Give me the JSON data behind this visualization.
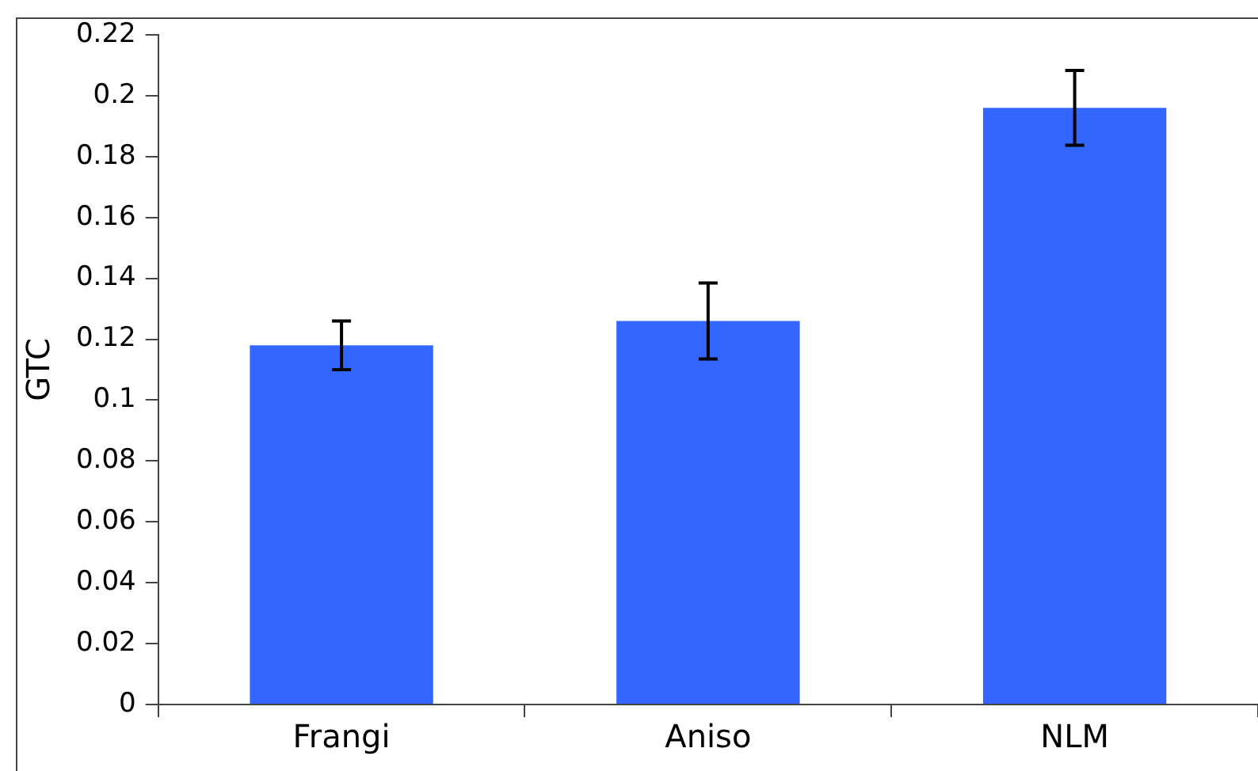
{
  "chart_data": {
    "type": "bar",
    "ylabel": "GTC",
    "categories": [
      "Frangi",
      "Aniso",
      "NLM"
    ],
    "values": [
      0.118,
      0.126,
      0.196
    ],
    "errors": [
      0.008,
      0.0125,
      0.0123
    ],
    "color": "#3366ff",
    "ylim": [
      0,
      0.22
    ],
    "yticks": [
      0,
      0.02,
      0.04,
      0.06,
      0.08,
      0.1,
      0.12,
      0.14,
      0.16,
      0.18,
      0.2,
      0.22
    ],
    "grid": false,
    "legend": false
  }
}
